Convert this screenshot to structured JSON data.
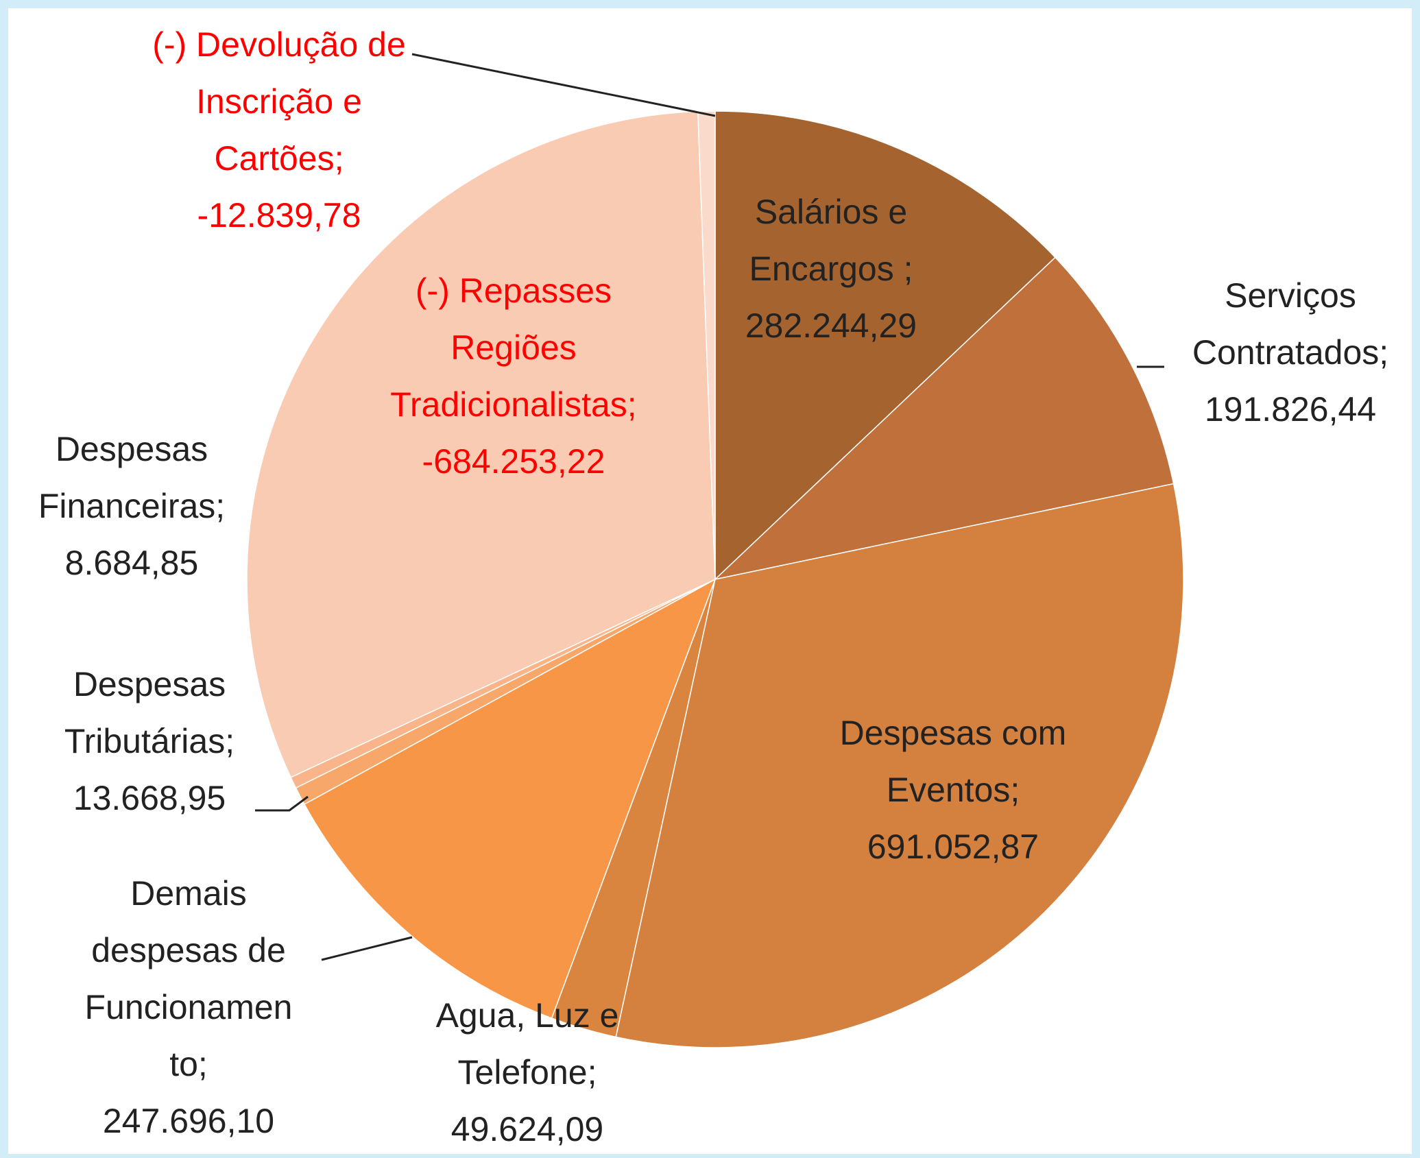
{
  "chart_data": {
    "type": "pie",
    "categories": [
      "Salários e Encargos ;",
      "Serviços Contratados;",
      "Despesas com Eventos;",
      "Agua, Luz e Telefone;",
      "Demais despesas de Funcionamento;",
      "Despesas Tributárias;",
      "Despesas Financeiras;",
      "(-) Repasses Regiões Tradicionalistas;",
      "(-) Devolução de Inscrição e Cartões;"
    ],
    "values": [
      282244.29,
      191826.44,
      691052.87,
      49624.09,
      247696.1,
      13668.95,
      8684.85,
      -684253.22,
      -12839.78
    ],
    "value_labels": [
      "282.244,29",
      "191.826,44",
      "691.052,87",
      "49.624,09",
      "247.696,10",
      "13.668,95",
      "8.684,85",
      "-684.253,22",
      "-12.839,78"
    ],
    "colors": [
      "#a5642f",
      "#c0703a",
      "#d4803e",
      "#d9853f",
      "#f79646",
      "#f8a76b",
      "#f9b48a",
      "#f9cbb2",
      "#fadbcb"
    ]
  }
}
